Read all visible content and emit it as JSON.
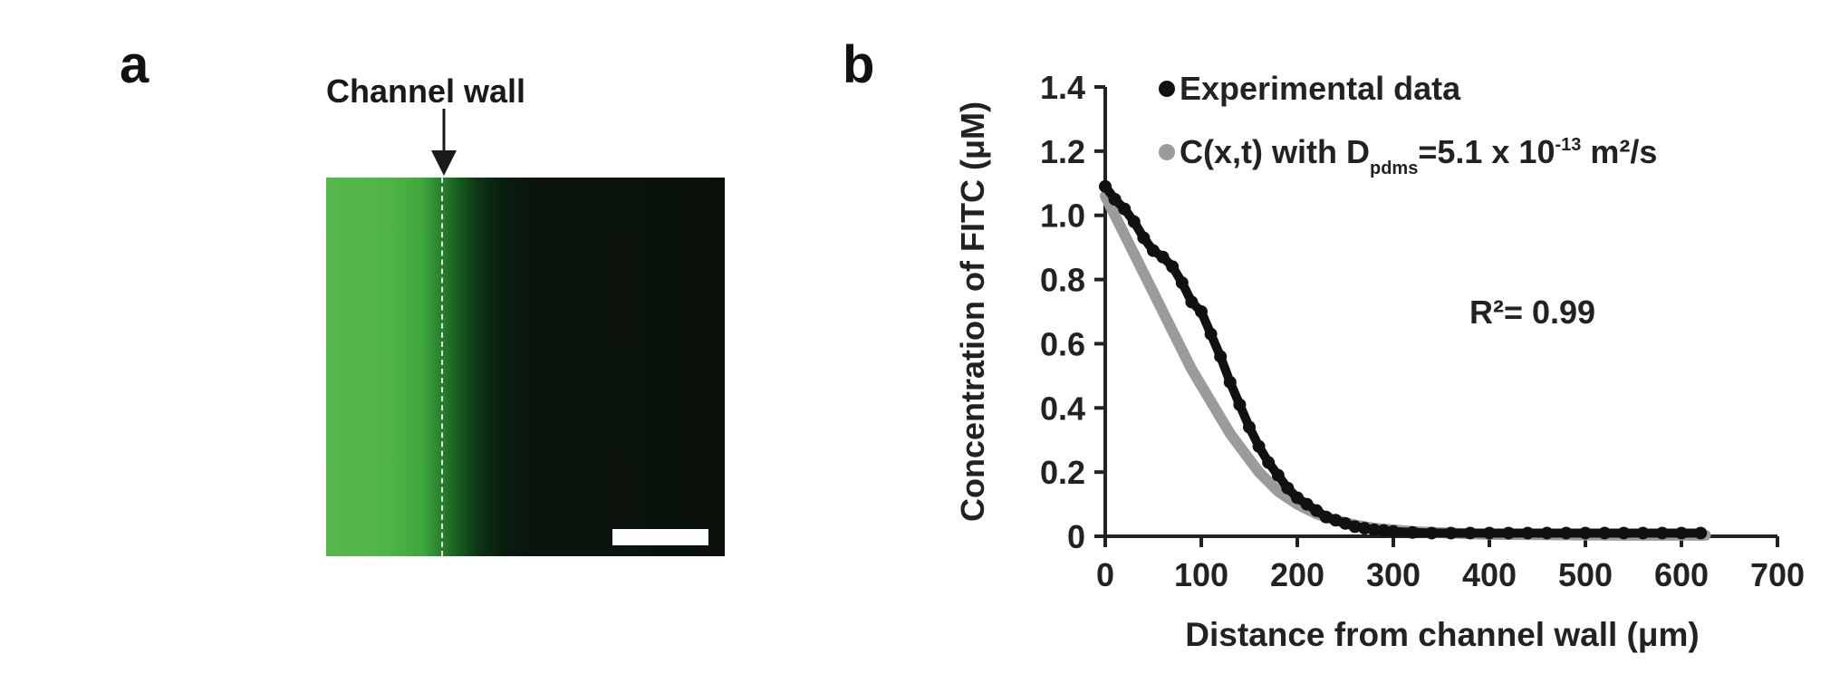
{
  "panel_a": {
    "letter": "a",
    "wall_label": "Channel wall"
  },
  "panel_b": {
    "letter": "b",
    "legend": {
      "experimental": "Experimental data",
      "fit_prefix": "C(x,t) with D",
      "fit_subscript": "pdms",
      "fit_value": "=5.1 x 10",
      "fit_exponent": "-13",
      "fit_unit": " m²/s"
    },
    "r2_label": "R²= 0.99"
  },
  "colors": {
    "experimental": "#111111",
    "fit": "#9b9b9b",
    "fluorescence": "#4fb447"
  },
  "chart_data": {
    "type": "scatter",
    "xlabel": "Distance from channel wall (μm)",
    "ylabel": "Concentration of FITC (μM)",
    "xlim": [
      0,
      700
    ],
    "ylim": [
      0,
      1.4
    ],
    "xticks": [
      0,
      100,
      200,
      300,
      400,
      500,
      600,
      700
    ],
    "yticks": [
      0,
      0.2,
      0.4,
      0.6,
      0.8,
      1.0,
      1.2,
      1.4
    ],
    "ytick_labels": [
      "0",
      "0.2",
      "0.4",
      "0.6",
      "0.8",
      "1.0",
      "1.2",
      "1.4"
    ],
    "series": [
      {
        "name": "Experimental data",
        "x": [
          0,
          10,
          20,
          30,
          40,
          50,
          60,
          70,
          80,
          90,
          100,
          110,
          120,
          130,
          140,
          150,
          160,
          170,
          180,
          190,
          200,
          210,
          220,
          230,
          240,
          250,
          260,
          270,
          280,
          290,
          300,
          320,
          340,
          360,
          380,
          400,
          420,
          440,
          460,
          480,
          500,
          520,
          540,
          560,
          580,
          600,
          620
        ],
        "y": [
          1.09,
          1.05,
          1.02,
          0.98,
          0.93,
          0.89,
          0.87,
          0.84,
          0.79,
          0.73,
          0.7,
          0.63,
          0.56,
          0.48,
          0.41,
          0.34,
          0.28,
          0.23,
          0.19,
          0.15,
          0.12,
          0.1,
          0.08,
          0.06,
          0.05,
          0.04,
          0.03,
          0.025,
          0.02,
          0.018,
          0.015,
          0.012,
          0.01,
          0.01,
          0.01,
          0.01,
          0.01,
          0.01,
          0.01,
          0.01,
          0.01,
          0.01,
          0.01,
          0.01,
          0.01,
          0.01,
          0.01
        ]
      },
      {
        "name": "C(x,t) with Dpdms=5.1 x 10-13 m²/s",
        "x": [
          0,
          10,
          20,
          30,
          40,
          50,
          60,
          70,
          80,
          90,
          100,
          110,
          120,
          130,
          140,
          150,
          160,
          170,
          180,
          190,
          200,
          220,
          240,
          260,
          280,
          300,
          320,
          340,
          360,
          380,
          400,
          450,
          500,
          550,
          600,
          625
        ],
        "y": [
          1.06,
          1.0,
          0.94,
          0.88,
          0.82,
          0.76,
          0.7,
          0.64,
          0.58,
          0.52,
          0.47,
          0.42,
          0.37,
          0.32,
          0.28,
          0.24,
          0.2,
          0.17,
          0.14,
          0.12,
          0.1,
          0.07,
          0.05,
          0.035,
          0.025,
          0.02,
          0.015,
          0.012,
          0.01,
          0.008,
          0.006,
          0.005,
          0.004,
          0.003,
          0.003,
          0.003
        ]
      }
    ]
  }
}
